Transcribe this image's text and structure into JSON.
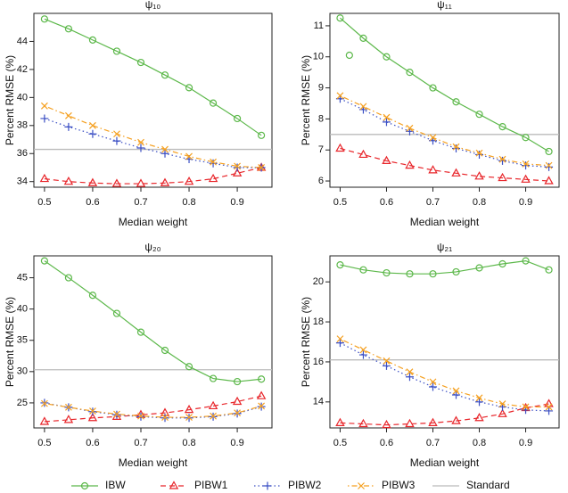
{
  "chart_data": [
    {
      "type": "line",
      "title": "ψ₁₀",
      "xlabel": "Median weight",
      "ylabel": "Percent RMSE (%)",
      "x": [
        0.5,
        0.55,
        0.6,
        0.65,
        0.7,
        0.75,
        0.8,
        0.85,
        0.9,
        0.95
      ],
      "xlim": [
        0.478,
        0.972
      ],
      "xticks": [
        0.5,
        0.6,
        0.7,
        0.8,
        0.9
      ],
      "ylim": [
        33.6,
        46
      ],
      "yticks": [
        34,
        36,
        38,
        40,
        42,
        44
      ],
      "series": [
        {
          "name": "IBW",
          "color": "#5cb84a",
          "marker": "circle",
          "dash": "solid",
          "values": [
            45.6,
            44.9,
            44.1,
            43.3,
            42.5,
            41.6,
            40.7,
            39.6,
            38.5,
            37.3
          ]
        },
        {
          "name": "PIBW1",
          "color": "#e8262b",
          "marker": "triangle",
          "dash": "dashed",
          "values": [
            34.2,
            34.0,
            33.9,
            33.85,
            33.85,
            33.9,
            34.0,
            34.2,
            34.6,
            35.0
          ]
        },
        {
          "name": "PIBW2",
          "color": "#3b4fc4",
          "marker": "plus",
          "dash": "dotted",
          "values": [
            38.5,
            37.9,
            37.4,
            36.9,
            36.4,
            36.0,
            35.6,
            35.3,
            35.0,
            35.0
          ]
        },
        {
          "name": "PIBW3",
          "color": "#f5a020",
          "marker": "x",
          "dash": "dotdash",
          "values": [
            39.4,
            38.7,
            38.0,
            37.4,
            36.8,
            36.3,
            35.8,
            35.4,
            35.1,
            35.0
          ]
        }
      ],
      "reference": {
        "name": "Standard",
        "value": 36.3,
        "color": "#bbbbbb"
      }
    },
    {
      "type": "line",
      "title": "ψ₁₁",
      "xlabel": "Median weight",
      "ylabel": "Percent RMSE (%)",
      "x": [
        0.5,
        0.55,
        0.6,
        0.65,
        0.7,
        0.75,
        0.8,
        0.85,
        0.9,
        0.95
      ],
      "xlim": [
        0.478,
        0.972
      ],
      "xticks": [
        0.5,
        0.6,
        0.7,
        0.8,
        0.9
      ],
      "ylim": [
        5.8,
        11.4
      ],
      "yticks": [
        6,
        7,
        8,
        9,
        10,
        11
      ],
      "series": [
        {
          "name": "IBW",
          "color": "#5cb84a",
          "marker": "circle",
          "dash": "solid",
          "values": [
            11.25,
            10.6,
            10.0,
            9.5,
            9.0,
            8.55,
            8.15,
            7.75,
            7.4,
            6.95
          ]
        },
        {
          "name": "PIBW1",
          "color": "#e8262b",
          "marker": "triangle",
          "dash": "dashed",
          "values": [
            7.05,
            6.85,
            6.65,
            6.5,
            6.35,
            6.25,
            6.15,
            6.1,
            6.05,
            6.0
          ]
        },
        {
          "name": "PIBW2",
          "color": "#3b4fc4",
          "marker": "plus",
          "dash": "dotted",
          "values": [
            8.65,
            8.3,
            7.9,
            7.6,
            7.3,
            7.05,
            6.85,
            6.65,
            6.5,
            6.45
          ]
        },
        {
          "name": "PIBW3",
          "color": "#f5a020",
          "marker": "x",
          "dash": "dotdash",
          "values": [
            8.75,
            8.4,
            8.05,
            7.7,
            7.4,
            7.1,
            6.9,
            6.7,
            6.55,
            6.5
          ]
        }
      ],
      "extra_points": [
        {
          "x": 0.52,
          "y": 10.05
        }
      ],
      "reference": {
        "name": "Standard",
        "value": 7.5,
        "color": "#bbbbbb"
      }
    },
    {
      "type": "line",
      "title": "ψ₂₀",
      "xlabel": "Median weight",
      "ylabel": "Percent RMSE (%)",
      "x": [
        0.5,
        0.55,
        0.6,
        0.65,
        0.7,
        0.75,
        0.8,
        0.85,
        0.9,
        0.95
      ],
      "xlim": [
        0.478,
        0.972
      ],
      "xticks": [
        0.5,
        0.6,
        0.7,
        0.8,
        0.9
      ],
      "ylim": [
        21,
        48.5
      ],
      "yticks": [
        25,
        30,
        35,
        40,
        45
      ],
      "series": [
        {
          "name": "IBW",
          "color": "#5cb84a",
          "marker": "circle",
          "dash": "solid",
          "values": [
            47.7,
            45.0,
            42.2,
            39.3,
            36.3,
            33.4,
            30.8,
            28.9,
            28.4,
            28.8
          ]
        },
        {
          "name": "PIBW1",
          "color": "#e8262b",
          "marker": "triangle",
          "dash": "dashed",
          "values": [
            22.0,
            22.3,
            22.6,
            22.8,
            23.1,
            23.4,
            23.9,
            24.5,
            25.2,
            26.1
          ]
        },
        {
          "name": "PIBW2",
          "color": "#3b4fc4",
          "marker": "plus",
          "dash": "dotted",
          "values": [
            25.0,
            24.3,
            23.6,
            23.1,
            22.8,
            22.6,
            22.6,
            22.8,
            23.3,
            24.4
          ]
        },
        {
          "name": "PIBW3",
          "color": "#f5a020",
          "marker": "x",
          "dash": "dotdash",
          "values": [
            24.9,
            24.3,
            23.7,
            23.2,
            22.9,
            22.7,
            22.7,
            22.9,
            23.4,
            24.5
          ]
        }
      ],
      "reference": {
        "name": "Standard",
        "value": 30.3,
        "color": "#bbbbbb"
      }
    },
    {
      "type": "line",
      "title": "ψ₂₁",
      "xlabel": "Median weight",
      "ylabel": "Percent RMSE (%)",
      "x": [
        0.5,
        0.55,
        0.6,
        0.65,
        0.7,
        0.75,
        0.8,
        0.85,
        0.9,
        0.95
      ],
      "xlim": [
        0.478,
        0.972
      ],
      "xticks": [
        0.5,
        0.6,
        0.7,
        0.8,
        0.9
      ],
      "ylim": [
        12.7,
        21.3
      ],
      "yticks": [
        14,
        16,
        18,
        20
      ],
      "series": [
        {
          "name": "IBW",
          "color": "#5cb84a",
          "marker": "circle",
          "dash": "solid",
          "values": [
            20.85,
            20.6,
            20.45,
            20.4,
            20.4,
            20.5,
            20.7,
            20.9,
            21.05,
            20.6
          ]
        },
        {
          "name": "PIBW1",
          "color": "#e8262b",
          "marker": "triangle",
          "dash": "dashed",
          "values": [
            12.95,
            12.9,
            12.85,
            12.9,
            12.95,
            13.05,
            13.2,
            13.4,
            13.7,
            13.9
          ]
        },
        {
          "name": "PIBW2",
          "color": "#3b4fc4",
          "marker": "plus",
          "dash": "dotted",
          "values": [
            16.95,
            16.35,
            15.8,
            15.25,
            14.75,
            14.35,
            14.0,
            13.75,
            13.6,
            13.55
          ]
        },
        {
          "name": "PIBW3",
          "color": "#f5a020",
          "marker": "x",
          "dash": "dotdash",
          "values": [
            17.15,
            16.6,
            16.05,
            15.5,
            15.0,
            14.55,
            14.2,
            13.9,
            13.75,
            13.75
          ]
        }
      ],
      "reference": {
        "name": "Standard",
        "value": 16.1,
        "color": "#bbbbbb"
      }
    }
  ]
}
